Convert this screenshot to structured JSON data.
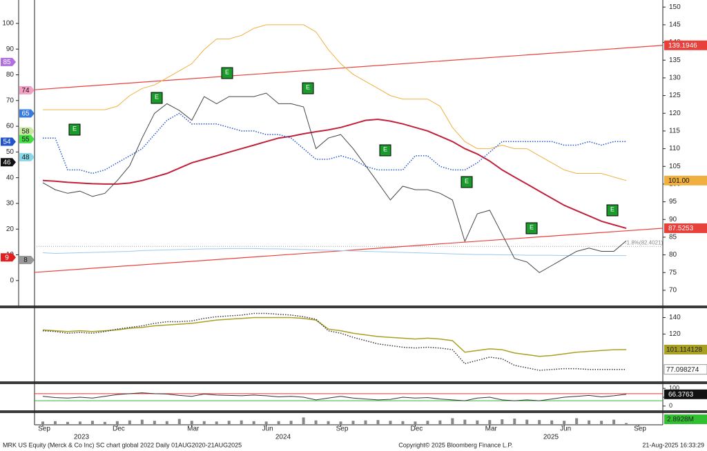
{
  "chart_data": [
    {
      "type": "line",
      "categories": [
        "Sep",
        null,
        null,
        null,
        null,
        null,
        "Dec",
        null,
        null,
        null,
        null,
        null,
        "Mar",
        null,
        null,
        null,
        null,
        null,
        "Jun",
        null,
        null,
        null,
        null,
        null,
        "Sep",
        null,
        null,
        null,
        null,
        null,
        "Dec",
        null,
        null,
        null,
        null,
        null,
        "Mar",
        null,
        null,
        null,
        null,
        null,
        "Jun",
        null,
        null,
        null,
        null,
        null,
        "Sep"
      ],
      "year_labels": [
        "2023",
        "2024",
        "2025"
      ],
      "ylim": [
        65.7,
        152
      ],
      "yticks": [
        150,
        145,
        140,
        135,
        130,
        125,
        120,
        115,
        110,
        105,
        100,
        95,
        90,
        85,
        80,
        75,
        70
      ],
      "y2lim": [
        -9.7,
        109.1
      ],
      "y2ticks": [
        100,
        90,
        80,
        70,
        60,
        50,
        40,
        30,
        20,
        10,
        0
      ],
      "series": [
        {
          "color": "#c0203a",
          "width": 2,
          "values": [
            101,
            100.8,
            100.5,
            100.3,
            100.1,
            100,
            100,
            100.3,
            101,
            102,
            103,
            104.5,
            106,
            107,
            108,
            109,
            110,
            111,
            112,
            113,
            113.5,
            114.2,
            114.8,
            115.3,
            116,
            117,
            118,
            118.3,
            117.8,
            117,
            116,
            115,
            113.5,
            112,
            110,
            108.5,
            106.5,
            104,
            102,
            100,
            98,
            96,
            94,
            92.5,
            91,
            89.5,
            88.5,
            87.5,
            null
          ]
        },
        {
          "color": "#f0b040",
          "width": 1,
          "values": [
            121,
            121,
            121,
            121,
            121,
            121,
            122,
            125,
            127,
            128,
            130,
            132,
            134,
            138,
            141,
            141,
            142,
            144,
            145,
            145,
            145,
            145,
            143,
            138,
            134,
            131,
            129,
            127,
            125,
            124,
            124,
            124,
            122,
            116,
            112,
            110,
            110,
            111,
            110,
            110,
            108,
            106,
            104,
            103,
            103,
            103,
            102,
            101,
            null
          ],
          "end_label": {
            "value": 101,
            "label": "101.00"
          }
        },
        {
          "color": "#2050d0",
          "width": 1.5,
          "dotted": true,
          "values": [
            113,
            113,
            104,
            104,
            103,
            104,
            106,
            108,
            110,
            114,
            118,
            120,
            117,
            117,
            117,
            116,
            115,
            115,
            114,
            114,
            113,
            110,
            107,
            107,
            108,
            107,
            105,
            104,
            104,
            104,
            108,
            108,
            105,
            104,
            104,
            106,
            109,
            112,
            112,
            112,
            112,
            112,
            111,
            111,
            112,
            111,
            112,
            112,
            null
          ]
        },
        {
          "color": "#9cc8ec",
          "width": 1,
          "values": [
            80.6,
            80.4,
            80.5,
            80.6,
            80.7,
            80.8,
            80.9,
            81,
            81.2,
            81.3,
            81.4,
            81.5,
            81.6,
            81.7,
            81.7,
            81.8,
            81.8,
            81.8,
            81.7,
            81.7,
            81.6,
            81.5,
            81.4,
            81.3,
            81.2,
            81.1,
            81,
            80.9,
            80.8,
            80.7,
            80.6,
            80.5,
            80.4,
            80.3,
            80.2,
            80.1,
            80.1,
            80,
            80,
            79.9,
            79.9,
            79.9,
            79.8,
            79.8,
            79.8,
            79.8,
            79.8,
            79.8,
            null
          ]
        },
        {
          "color": "#444444",
          "width": 1,
          "values": [
            100.4,
            98.4,
            97.4,
            98,
            96.5,
            97.4,
            101,
            105.2,
            113,
            120,
            122.7,
            120.8,
            118,
            124.7,
            122.7,
            124.7,
            124.7,
            124.7,
            125.7,
            122.7,
            122.7,
            121.8,
            110,
            113,
            114,
            110,
            105.2,
            100.4,
            95.5,
            99.4,
            98.4,
            98.4,
            97.4,
            95.5,
            83.8,
            91.6,
            92.6,
            85.8,
            79,
            78,
            75,
            77,
            79,
            81,
            81.9,
            81,
            81,
            84,
            null
          ]
        }
      ],
      "trend_lines": [
        {
          "color": "#e8403a",
          "values": [
            126.64,
            139.1946
          ]
        },
        {
          "color": "#e8403a",
          "values": [
            75.06,
            87.5253
          ]
        }
      ],
      "reference_line": {
        "value": 82.4021,
        "label": "-1.8%(82.4021)"
      },
      "left_tags": [
        {
          "value": 85,
          "color": "#b070e0"
        },
        {
          "value": 74,
          "color": "#f4a0c4"
        },
        {
          "value": 65,
          "color": "#3a7be0"
        },
        {
          "value": 58,
          "color": "#c8eaa0"
        },
        {
          "value": 55,
          "color": "#44dd44"
        },
        {
          "value": 54,
          "color": "#2255cc"
        },
        {
          "value": 48,
          "color": "#8ad8ea"
        },
        {
          "value": 46,
          "color": "#111111"
        },
        {
          "value": 9,
          "color": "#e02020"
        },
        {
          "value": 8,
          "color": "#999999"
        }
      ],
      "earnings_label": "E"
    },
    {
      "type": "line",
      "ylim": [
        62.6,
        151.3
      ],
      "yticks": [
        140,
        120
      ],
      "series": [
        {
          "color": "#a8a020",
          "width": 1.5,
          "values": [
            125,
            124,
            123,
            124,
            123,
            124,
            125,
            127,
            128,
            130,
            131,
            132,
            133,
            135,
            137,
            138,
            139,
            140,
            140,
            140,
            140,
            139,
            137,
            126,
            124,
            121,
            119,
            117,
            116,
            115,
            114,
            115,
            114,
            112,
            98,
            100,
            102,
            101,
            97,
            95,
            93,
            94,
            96,
            98,
            99,
            100,
            101,
            101.114128,
            null
          ]
        },
        {
          "color": "#333333",
          "width": 1.5,
          "dotted": true,
          "values": [
            124,
            123,
            121,
            122,
            121,
            123,
            126,
            128,
            130,
            133,
            135,
            135,
            136,
            139,
            141,
            142,
            143,
            145,
            145,
            144,
            143,
            141,
            138,
            124,
            121,
            116,
            112,
            108,
            106,
            104,
            103,
            104,
            103,
            101,
            84,
            88,
            92,
            90,
            82,
            79,
            76,
            77,
            78,
            78,
            77,
            77,
            77,
            77.098274,
            null
          ]
        }
      ]
    },
    {
      "type": "line",
      "ylim": [
        -24,
        124
      ],
      "yticks": [
        100,
        50,
        0
      ],
      "levels": [
        {
          "value": 70,
          "color": "#e83030"
        },
        {
          "value": 30,
          "color": "#30b030"
        }
      ],
      "series": [
        {
          "color": "#333333",
          "width": 1,
          "values": [
            55,
            48,
            45,
            50,
            45,
            55,
            65,
            70,
            75,
            70,
            68,
            60,
            55,
            68,
            62,
            60,
            58,
            62,
            58,
            52,
            55,
            50,
            35,
            45,
            55,
            45,
            40,
            35,
            38,
            50,
            45,
            48,
            40,
            35,
            30,
            45,
            50,
            35,
            30,
            35,
            30,
            40,
            50,
            55,
            60,
            52,
            58,
            66.3763,
            null
          ]
        }
      ]
    },
    {
      "type": "bar",
      "ylim": [
        0,
        30
      ],
      "color": "#888888",
      "values": [
        7,
        8,
        6,
        7,
        9,
        6,
        8,
        10,
        12,
        9,
        8,
        14,
        9,
        8,
        7,
        9,
        10,
        8,
        7,
        8,
        9,
        18,
        10,
        8,
        7,
        9,
        10,
        11,
        9,
        8,
        7,
        9,
        10,
        16,
        12,
        10,
        11,
        13,
        15,
        12,
        11,
        10,
        9,
        16,
        10,
        9,
        12,
        2.8928,
        null
      ],
      "end_label": {
        "value": 2.8928,
        "label": "2.8928M"
      }
    }
  ],
  "footer": {
    "left": "MRK US Equity (Merck & Co Inc) SC chart global 2022  Daily 01AUG2020-21AUG2025",
    "center": "Copyright© 2025 Bloomberg Finance L.P.",
    "right": "21-Aug-2025 16:33:29"
  }
}
